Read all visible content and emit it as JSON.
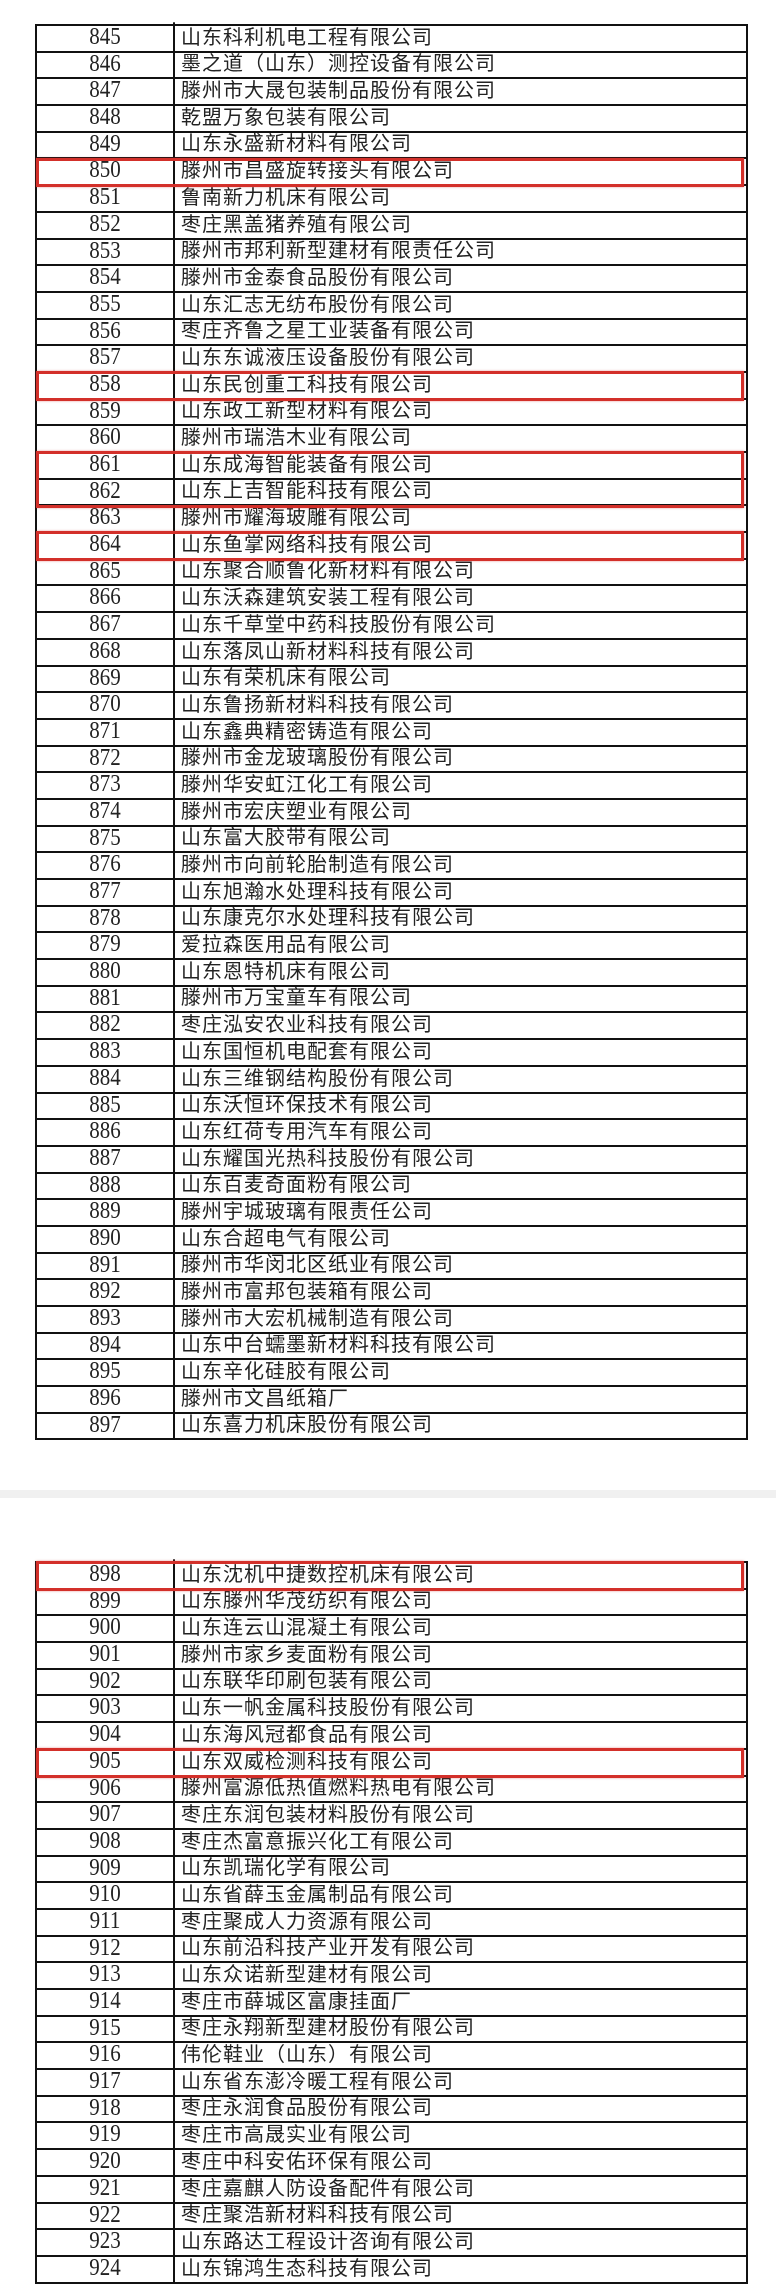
{
  "highlight_color": "#d3302a",
  "tables": [
    {
      "rows": [
        {
          "no": "845",
          "name": "山东科利机电工程有限公司"
        },
        {
          "no": "846",
          "name": "墨之道（山东）测控设备有限公司"
        },
        {
          "no": "847",
          "name": "滕州市大晟包装制品股份有限公司"
        },
        {
          "no": "848",
          "name": "乾盟万象包装有限公司"
        },
        {
          "no": "849",
          "name": "山东永盛新材料有限公司"
        },
        {
          "no": "850",
          "name": "滕州市昌盛旋转接头有限公司",
          "highlighted": true
        },
        {
          "no": "851",
          "name": "鲁南新力机床有限公司"
        },
        {
          "no": "852",
          "name": "枣庄黑盖猪养殖有限公司"
        },
        {
          "no": "853",
          "name": "滕州市邦利新型建材有限责任公司"
        },
        {
          "no": "854",
          "name": "滕州市金泰食品股份有限公司"
        },
        {
          "no": "855",
          "name": "山东汇志无纺布股份有限公司"
        },
        {
          "no": "856",
          "name": "枣庄齐鲁之星工业装备有限公司"
        },
        {
          "no": "857",
          "name": "山东东诚液压设备股份有限公司"
        },
        {
          "no": "858",
          "name": "山东民创重工科技有限公司",
          "highlighted": true
        },
        {
          "no": "859",
          "name": "山东政工新型材料有限公司"
        },
        {
          "no": "860",
          "name": "滕州市瑞浩木业有限公司"
        },
        {
          "no": "861",
          "name": "山东成海智能装备有限公司",
          "highlighted": true
        },
        {
          "no": "862",
          "name": "山东上吉智能科技有限公司",
          "highlighted": true
        },
        {
          "no": "863",
          "name": "滕州市耀海玻雕有限公司"
        },
        {
          "no": "864",
          "name": "山东鱼掌网络科技有限公司",
          "highlighted": true
        },
        {
          "no": "865",
          "name": "山东聚合顺鲁化新材料有限公司"
        },
        {
          "no": "866",
          "name": "山东沃森建筑安装工程有限公司"
        },
        {
          "no": "867",
          "name": "山东千草堂中药科技股份有限公司"
        },
        {
          "no": "868",
          "name": "山东落凤山新材料科技有限公司"
        },
        {
          "no": "869",
          "name": "山东有荣机床有限公司"
        },
        {
          "no": "870",
          "name": "山东鲁扬新材料科技有限公司"
        },
        {
          "no": "871",
          "name": "山东鑫典精密铸造有限公司"
        },
        {
          "no": "872",
          "name": "滕州市金龙玻璃股份有限公司"
        },
        {
          "no": "873",
          "name": "滕州华安虹江化工有限公司"
        },
        {
          "no": "874",
          "name": "滕州市宏庆塑业有限公司"
        },
        {
          "no": "875",
          "name": "山东富大胶带有限公司"
        },
        {
          "no": "876",
          "name": "滕州市向前轮胎制造有限公司"
        },
        {
          "no": "877",
          "name": "山东旭瀚水处理科技有限公司"
        },
        {
          "no": "878",
          "name": "山东康克尔水处理科技有限公司"
        },
        {
          "no": "879",
          "name": "爱拉森医用品有限公司"
        },
        {
          "no": "880",
          "name": "山东恩特机床有限公司"
        },
        {
          "no": "881",
          "name": "滕州市万宝童车有限公司"
        },
        {
          "no": "882",
          "name": "枣庄泓安农业科技有限公司"
        },
        {
          "no": "883",
          "name": "山东国恒机电配套有限公司"
        },
        {
          "no": "884",
          "name": "山东三维钢结构股份有限公司"
        },
        {
          "no": "885",
          "name": "山东沃恒环保技术有限公司"
        },
        {
          "no": "886",
          "name": "山东红荷专用汽车有限公司"
        },
        {
          "no": "887",
          "name": "山东耀国光热科技股份有限公司"
        },
        {
          "no": "888",
          "name": "山东百麦奇面粉有限公司"
        },
        {
          "no": "889",
          "name": "滕州宇城玻璃有限责任公司"
        },
        {
          "no": "890",
          "name": "山东合超电气有限公司"
        },
        {
          "no": "891",
          "name": "滕州市华闵北区纸业有限公司"
        },
        {
          "no": "892",
          "name": "滕州市富邦包装箱有限公司"
        },
        {
          "no": "893",
          "name": "滕州市大宏机械制造有限公司"
        },
        {
          "no": "894",
          "name": "山东中台蠕墨新材料科技有限公司"
        },
        {
          "no": "895",
          "name": "山东辛化硅胶有限公司"
        },
        {
          "no": "896",
          "name": "滕州市文昌纸箱厂"
        },
        {
          "no": "897",
          "name": "山东喜力机床股份有限公司"
        }
      ]
    },
    {
      "rows": [
        {
          "no": "898",
          "name": "山东沈机中捷数控机床有限公司",
          "highlighted": true
        },
        {
          "no": "899",
          "name": "山东滕州华茂纺织有限公司"
        },
        {
          "no": "900",
          "name": "山东连云山混凝土有限公司"
        },
        {
          "no": "901",
          "name": "滕州市家乡麦面粉有限公司"
        },
        {
          "no": "902",
          "name": "山东联华印刷包装有限公司"
        },
        {
          "no": "903",
          "name": "山东一帆金属科技股份有限公司"
        },
        {
          "no": "904",
          "name": "山东海风冠都食品有限公司"
        },
        {
          "no": "905",
          "name": "山东双威检测科技有限公司",
          "highlighted": true
        },
        {
          "no": "906",
          "name": "滕州富源低热值燃料热电有限公司"
        },
        {
          "no": "907",
          "name": "枣庄东润包装材料股份有限公司"
        },
        {
          "no": "908",
          "name": "枣庄杰富意振兴化工有限公司"
        },
        {
          "no": "909",
          "name": "山东凯瑞化学有限公司"
        },
        {
          "no": "910",
          "name": "山东省薛玉金属制品有限公司"
        },
        {
          "no": "911",
          "name": "枣庄聚成人力资源有限公司"
        },
        {
          "no": "912",
          "name": "山东前沿科技产业开发有限公司"
        },
        {
          "no": "913",
          "name": "山东众诺新型建材有限公司"
        },
        {
          "no": "914",
          "name": "枣庄市薛城区富康挂面厂"
        },
        {
          "no": "915",
          "name": "枣庄永翔新型建材股份有限公司"
        },
        {
          "no": "916",
          "name": "伟伦鞋业（山东）有限公司"
        },
        {
          "no": "917",
          "name": "山东省东澎冷暖工程有限公司"
        },
        {
          "no": "918",
          "name": "枣庄永润食品股份有限公司"
        },
        {
          "no": "919",
          "name": "枣庄市高晟实业有限公司"
        },
        {
          "no": "920",
          "name": "枣庄中科安佑环保有限公司"
        },
        {
          "no": "921",
          "name": "枣庄嘉麒人防设备配件有限公司"
        },
        {
          "no": "922",
          "name": "枣庄聚浩新材料科技有限公司"
        },
        {
          "no": "923",
          "name": "山东路达工程设计咨询有限公司"
        },
        {
          "no": "924",
          "name": "山东锦鸿生态科技有限公司"
        }
      ]
    }
  ]
}
